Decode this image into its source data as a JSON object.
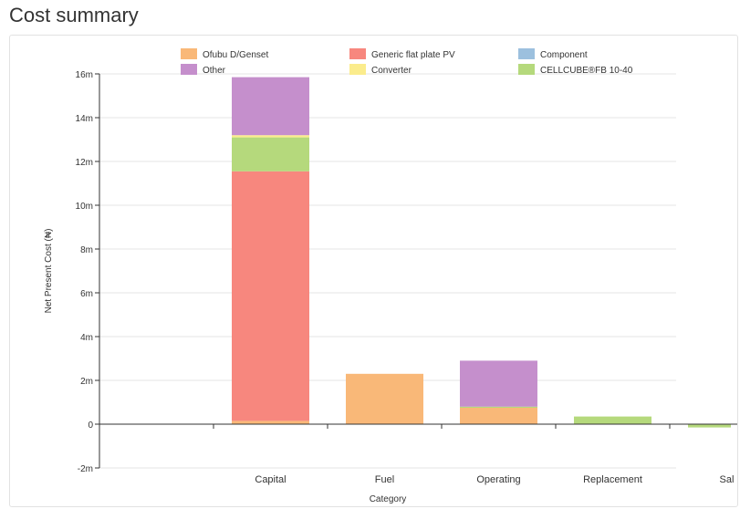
{
  "page": {
    "title": "Cost summary"
  },
  "chart_data": {
    "type": "bar",
    "stacked": true,
    "categories": [
      "",
      "Capital",
      "Fuel",
      "Operating",
      "Replacement",
      "Sal"
    ],
    "xlabel": "Category",
    "ylabel": "Net Present Cost (₦)",
    "ylim": [
      -2000000,
      16000000
    ],
    "yticks": [
      {
        "value": -2000000,
        "label": "-2m"
      },
      {
        "value": 0,
        "label": "0"
      },
      {
        "value": 2000000,
        "label": "2m"
      },
      {
        "value": 4000000,
        "label": "4m"
      },
      {
        "value": 6000000,
        "label": "6m"
      },
      {
        "value": 8000000,
        "label": "8m"
      },
      {
        "value": 10000000,
        "label": "10m"
      },
      {
        "value": 12000000,
        "label": "12m"
      },
      {
        "value": 14000000,
        "label": "14m"
      },
      {
        "value": 16000000,
        "label": "16m"
      }
    ],
    "grid": true,
    "legend_position": "top",
    "series": [
      {
        "name": "Ofubu D/Genset",
        "color": "#f9b878",
        "values": [
          0,
          150000,
          2300000,
          750000,
          0,
          0
        ]
      },
      {
        "name": "Generic flat plate PV",
        "color": "#f7877e",
        "values": [
          0,
          11400000,
          0,
          0,
          0,
          0
        ]
      },
      {
        "name": "Component",
        "color": "#9cc0de",
        "values": [
          0,
          0,
          0,
          0,
          0,
          0
        ]
      },
      {
        "name": "Other",
        "color": "#c58fcc",
        "values": [
          0,
          2650000,
          0,
          2100000,
          0,
          0
        ]
      },
      {
        "name": "Converter",
        "color": "#fbec8c",
        "values": [
          0,
          100000,
          0,
          0,
          0,
          0
        ]
      },
      {
        "name": "CELLCUBE®FB 10-40",
        "color": "#b5d97c",
        "values": [
          0,
          1550000,
          0,
          50000,
          350000,
          -150000
        ]
      }
    ],
    "stack_order": [
      "Ofubu D/Genset",
      "Generic flat plate PV",
      "Component",
      "CELLCUBE®FB 10-40",
      "Converter",
      "Other"
    ]
  }
}
